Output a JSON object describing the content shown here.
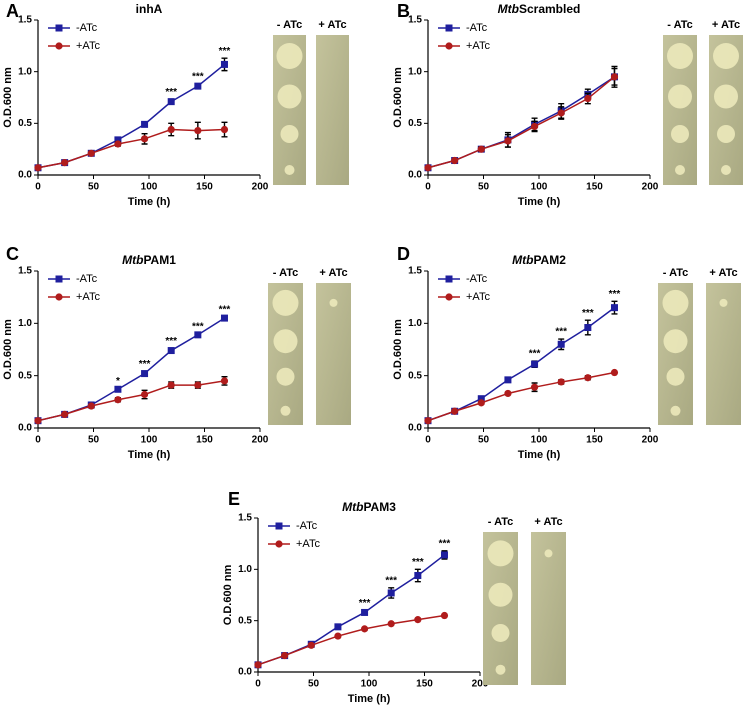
{
  "chart_data": [
    {
      "type": "line",
      "panel": "A",
      "title": "inhA",
      "xlabel": "Time (h)",
      "ylabel": "O.D.600 nm",
      "x": [
        0,
        24,
        48,
        72,
        96,
        120,
        144,
        168
      ],
      "xlim": [
        0,
        200
      ],
      "xticks": [
        0,
        50,
        100,
        150,
        200
      ],
      "ylim": [
        0,
        1.5
      ],
      "yticks": [
        {
          "value": 0,
          "label": "0.0"
        },
        {
          "value": 0.5,
          "label": "0.5"
        },
        {
          "value": 1,
          "label": "1.0"
        },
        {
          "value": 1.5,
          "label": "1.5"
        }
      ],
      "legend": "upper left",
      "plates": [
        "- ATc",
        "+ ATc"
      ],
      "significance": [
        null,
        null,
        null,
        null,
        null,
        "***",
        "***",
        "***"
      ],
      "series": [
        {
          "name": "-ATc",
          "color": "#1f1f9e",
          "marker": "square",
          "values": [
            0.07,
            0.12,
            0.21,
            0.34,
            0.49,
            0.71,
            0.86,
            1.07
          ],
          "errors": [
            0,
            0,
            0.01,
            0.01,
            0.01,
            0.02,
            0.02,
            0.06
          ]
        },
        {
          "name": "+ATc",
          "color": "#b01c1c",
          "marker": "circle",
          "values": [
            0.07,
            0.12,
            0.21,
            0.3,
            0.35,
            0.44,
            0.43,
            0.44
          ],
          "errors": [
            0,
            0,
            0.01,
            0.02,
            0.05,
            0.06,
            0.08,
            0.07
          ]
        }
      ]
    },
    {
      "type": "line",
      "panel": "B",
      "title_italic": "Mtb",
      "title": "Scrambled",
      "xlabel": "Time (h)",
      "ylabel": "O.D.600 nm",
      "x": [
        0,
        24,
        48,
        72,
        96,
        120,
        144,
        168
      ],
      "xlim": [
        0,
        200
      ],
      "xticks": [
        0,
        50,
        100,
        150,
        200
      ],
      "ylim": [
        0,
        1.5
      ],
      "yticks": [
        {
          "value": 0,
          "label": "0.0"
        },
        {
          "value": 0.5,
          "label": "0.5"
        },
        {
          "value": 1,
          "label": "1.0"
        },
        {
          "value": 1.5,
          "label": "1.5"
        }
      ],
      "legend": "upper left",
      "plates": [
        "- ATc",
        "+ ATc"
      ],
      "series": [
        {
          "name": "-ATc",
          "color": "#1f1f9e",
          "marker": "square",
          "values": [
            0.07,
            0.14,
            0.25,
            0.34,
            0.49,
            0.62,
            0.78,
            0.95
          ],
          "errors": [
            0,
            0.01,
            0.02,
            0.07,
            0.06,
            0.07,
            0.05,
            0.1
          ]
        },
        {
          "name": "+ATc",
          "color": "#b01c1c",
          "marker": "circle",
          "values": [
            0.07,
            0.14,
            0.25,
            0.33,
            0.47,
            0.6,
            0.74,
            0.95
          ],
          "errors": [
            0,
            0.01,
            0.02,
            0.06,
            0.05,
            0.06,
            0.05,
            0.08
          ]
        }
      ]
    },
    {
      "type": "line",
      "panel": "C",
      "title_italic": "Mtb",
      "title": "PAM1",
      "xlabel": "Time (h)",
      "ylabel": "O.D.600 nm",
      "x": [
        0,
        24,
        48,
        72,
        96,
        120,
        144,
        168
      ],
      "xlim": [
        0,
        200
      ],
      "xticks": [
        0,
        50,
        100,
        150,
        200
      ],
      "ylim": [
        0,
        1.5
      ],
      "yticks": [
        {
          "value": 0,
          "label": "0.0"
        },
        {
          "value": 0.5,
          "label": "0.5"
        },
        {
          "value": 1,
          "label": "1.0"
        },
        {
          "value": 1.5,
          "label": "1.5"
        }
      ],
      "legend": "upper left",
      "plates": [
        "- ATc",
        "+ ATc"
      ],
      "significance": [
        null,
        null,
        null,
        "*",
        "***",
        "***",
        "***",
        "***"
      ],
      "series": [
        {
          "name": "-ATc",
          "color": "#1f1f9e",
          "marker": "square",
          "values": [
            0.07,
            0.13,
            0.22,
            0.37,
            0.52,
            0.74,
            0.89,
            1.05
          ],
          "errors": [
            0,
            0.01,
            0.01,
            0.01,
            0.02,
            0.02,
            0.01,
            0.01
          ]
        },
        {
          "name": "+ATc",
          "color": "#b01c1c",
          "marker": "circle",
          "values": [
            0.07,
            0.13,
            0.21,
            0.27,
            0.32,
            0.41,
            0.41,
            0.45
          ],
          "errors": [
            0,
            0,
            0.01,
            0.02,
            0.04,
            0.03,
            0.03,
            0.04
          ]
        }
      ]
    },
    {
      "type": "line",
      "panel": "D",
      "title_italic": "Mtb",
      "title": "PAM2",
      "xlabel": "Time (h)",
      "ylabel": "O.D.600 nm",
      "x": [
        0,
        24,
        48,
        72,
        96,
        120,
        144,
        168
      ],
      "xlim": [
        0,
        200
      ],
      "xticks": [
        0,
        50,
        100,
        150,
        200
      ],
      "ylim": [
        0,
        1.5
      ],
      "yticks": [
        {
          "value": 0,
          "label": "0.0"
        },
        {
          "value": 0.5,
          "label": "0.5"
        },
        {
          "value": 1,
          "label": "1.0"
        },
        {
          "value": 1.5,
          "label": "1.5"
        }
      ],
      "legend": "upper left",
      "plates": [
        "- ATc",
        "+ ATc"
      ],
      "significance": [
        null,
        null,
        null,
        null,
        "***",
        "***",
        "***",
        "***"
      ],
      "series": [
        {
          "name": "-ATc",
          "color": "#1f1f9e",
          "marker": "square",
          "values": [
            0.07,
            0.16,
            0.28,
            0.46,
            0.61,
            0.8,
            0.96,
            1.15
          ],
          "errors": [
            0,
            0.01,
            0.01,
            0.02,
            0.03,
            0.05,
            0.07,
            0.06
          ]
        },
        {
          "name": "+ATc",
          "color": "#b01c1c",
          "marker": "circle",
          "values": [
            0.07,
            0.16,
            0.24,
            0.33,
            0.39,
            0.44,
            0.48,
            0.53
          ],
          "errors": [
            0,
            0.01,
            0.01,
            0.01,
            0.04,
            0.02,
            0.02,
            0.01
          ]
        }
      ]
    },
    {
      "type": "line",
      "panel": "E",
      "title_italic": "Mtb",
      "title": "PAM3",
      "xlabel": "Time (h)",
      "ylabel": "O.D.600 nm",
      "x": [
        0,
        24,
        48,
        72,
        96,
        120,
        144,
        168
      ],
      "xlim": [
        0,
        200
      ],
      "xticks": [
        0,
        50,
        100,
        150,
        200
      ],
      "ylim": [
        0,
        1.5
      ],
      "yticks": [
        {
          "value": 0,
          "label": "0.0"
        },
        {
          "value": 0.5,
          "label": "0.5"
        },
        {
          "value": 1,
          "label": "1.0"
        },
        {
          "value": 1.5,
          "label": "1.5"
        }
      ],
      "legend": "upper left",
      "plates": [
        "- ATc",
        "+ ATc"
      ],
      "significance": [
        null,
        null,
        null,
        null,
        "***",
        "***",
        "***",
        "***"
      ],
      "series": [
        {
          "name": "-ATc",
          "color": "#1f1f9e",
          "marker": "square",
          "values": [
            0.07,
            0.16,
            0.27,
            0.44,
            0.58,
            0.77,
            0.94,
            1.14
          ],
          "errors": [
            0,
            0.01,
            0.01,
            0.02,
            0.02,
            0.05,
            0.06,
            0.04
          ]
        },
        {
          "name": "+ATc",
          "color": "#b01c1c",
          "marker": "circle",
          "values": [
            0.07,
            0.16,
            0.26,
            0.35,
            0.42,
            0.47,
            0.51,
            0.55
          ],
          "errors": [
            0,
            0.01,
            0.01,
            0.01,
            0.01,
            0.01,
            0.01,
            0.01
          ]
        }
      ]
    }
  ]
}
